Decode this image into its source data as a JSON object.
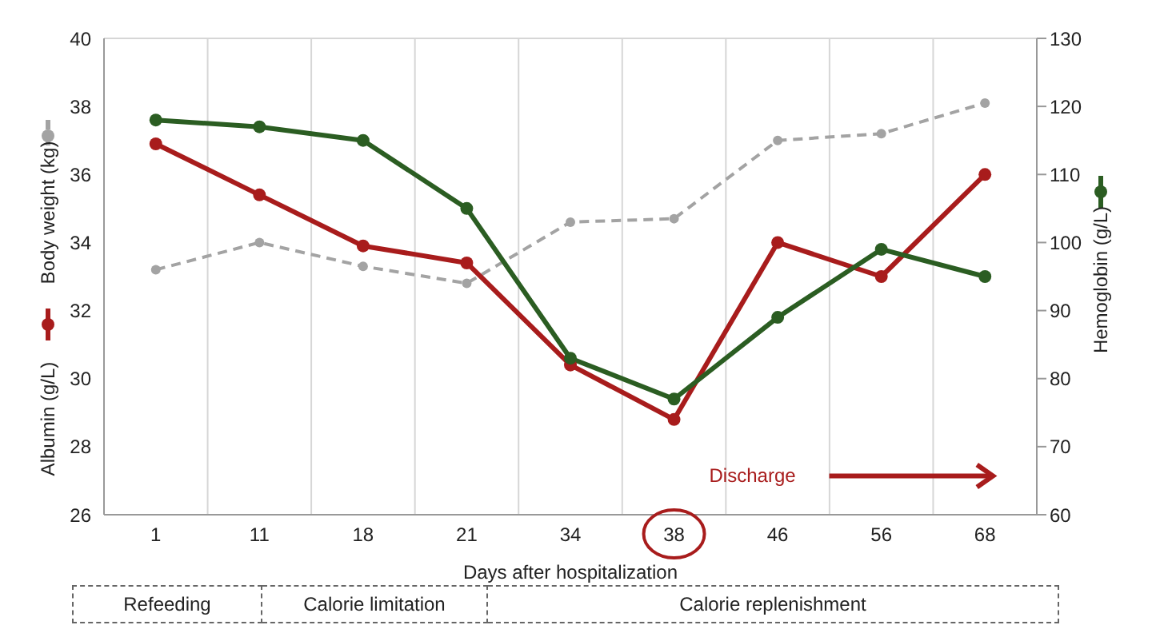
{
  "chart_data": {
    "type": "line",
    "xlabel": "Days after hospitalization",
    "categories": [
      "1",
      "11",
      "18",
      "21",
      "34",
      "38",
      "46",
      "56",
      "68"
    ],
    "series": [
      {
        "name": "Body weight (kg)",
        "color": "#a3a3a3",
        "line_style": "dashed",
        "values": [
          33.2,
          34.0,
          33.3,
          32.8,
          34.6,
          34.7,
          37.0,
          37.2,
          38.1
        ]
      },
      {
        "name": "Albumin (g/L)",
        "color": "#a81c1c",
        "line_style": "solid",
        "values": [
          36.9,
          35.4,
          33.9,
          33.4,
          30.4,
          28.8,
          34.0,
          33.0,
          36.0
        ]
      },
      {
        "name": "Hemoglobin (g/L)",
        "color": "#2b5d22",
        "line_style": "solid",
        "axis": "y2",
        "values": [
          118,
          117,
          115,
          105,
          83,
          77,
          89,
          99,
          95
        ]
      }
    ],
    "ylim": [
      26,
      40
    ],
    "yticks": [
      26,
      28,
      30,
      32,
      34,
      36,
      38,
      40
    ],
    "y2lim": [
      60,
      130
    ],
    "y2ticks": [
      60,
      70,
      80,
      90,
      100,
      110,
      120,
      130
    ],
    "grid": true,
    "marker": "circle",
    "legend": "left",
    "annotations": [
      "Discharge",
      "Refeeding",
      "Calorie limitation",
      "Calorie replenishment"
    ]
  }
}
